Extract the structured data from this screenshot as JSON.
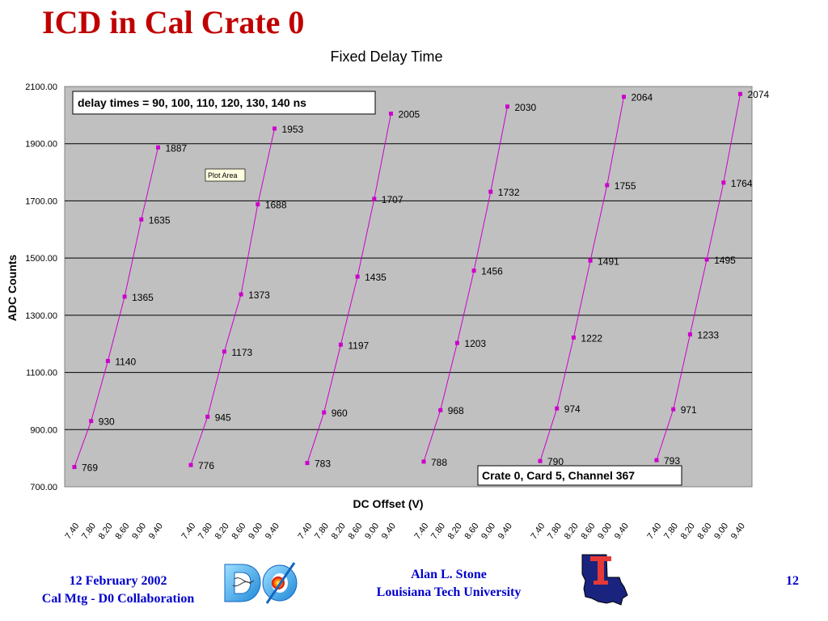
{
  "slide": {
    "title": "ICD in Cal Crate 0",
    "footer_left_line1": "12 February 2002",
    "footer_left_line2": "Cal Mtg - D0 Collaboration",
    "footer_center_line1": "Alan L. Stone",
    "footer_center_line2": "Louisiana Tech University",
    "page_number": "12",
    "logos": [
      "d0-logo",
      "louisiana-tech-logo"
    ]
  },
  "colors": {
    "series": "#cc00cc",
    "plot_bg": "#c0c0c0",
    "grid": "#000000",
    "title": "#c00000",
    "footer": "#0000cc"
  },
  "chart_data": {
    "type": "line",
    "title": "Fixed Delay Time",
    "xlabel": "DC Offset (V)",
    "ylabel": "ADC Counts",
    "ylim": [
      700,
      2100
    ],
    "y_ticks": [
      "700.00",
      "900.00",
      "1100.00",
      "1300.00",
      "1500.00",
      "1700.00",
      "1900.00",
      "2100.00"
    ],
    "grid": "horizontal",
    "plot_area_tooltip": "Plot Area",
    "annotations": [
      "delay times = 90, 100, 110, 120, 130, 140 ns",
      "Crate 0, Card 5, Channel 367"
    ],
    "categories": [
      "7.40",
      "7.80",
      "8.20",
      "8.60",
      "9.00",
      "9.40"
    ],
    "series": [
      {
        "values": [
          769,
          930,
          1140,
          1365,
          1635,
          1887
        ]
      },
      {
        "values": [
          776,
          945,
          1173,
          1373,
          1688,
          1953
        ]
      },
      {
        "values": [
          783,
          960,
          1197,
          1435,
          1707,
          2005
        ]
      },
      {
        "values": [
          788,
          968,
          1203,
          1456,
          1732,
          2030
        ]
      },
      {
        "values": [
          790,
          974,
          1222,
          1491,
          1755,
          2064
        ]
      },
      {
        "values": [
          793,
          971,
          1233,
          1495,
          1764,
          2074
        ]
      }
    ]
  }
}
